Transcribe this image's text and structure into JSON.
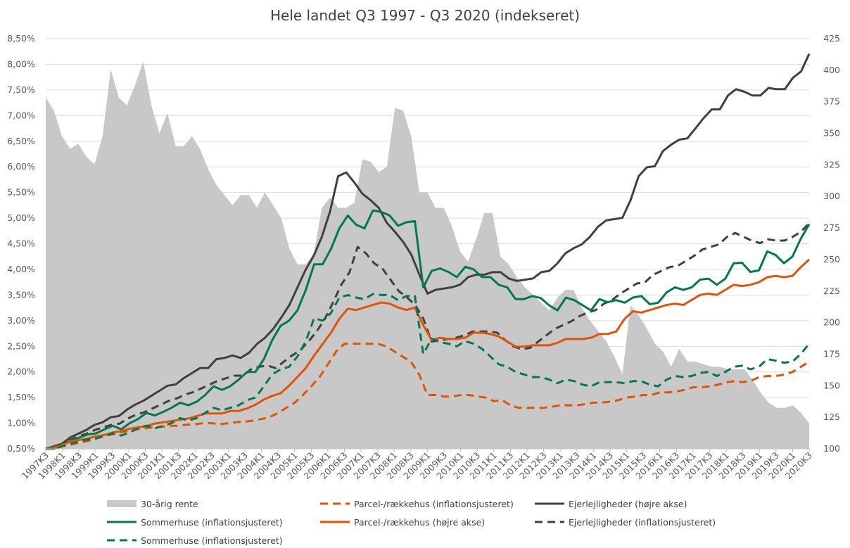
{
  "chart_data": {
    "type": "line",
    "title": "Hele landet Q3 1997 - Q3 2020 (indekseret)",
    "x_tick_labels": [
      "1997K3",
      "1998K1",
      "1998K3",
      "1999K1",
      "1999K3",
      "2000K1",
      "2000K3",
      "2001K1",
      "2001K3",
      "2002K1",
      "2002K3",
      "2003K1",
      "2003K3",
      "2004K1",
      "2004K3",
      "2005K1",
      "2005K3",
      "2006K1",
      "2006K3",
      "2007K1",
      "2007K3",
      "2008K1",
      "2008K3",
      "2009K1",
      "2009K3",
      "2010K1",
      "2010K3",
      "2011K1",
      "2011K3",
      "2012K1",
      "2012K3",
      "2013K1",
      "2013K3",
      "2014K1",
      "2014K3",
      "2015K1",
      "2015K3",
      "2016K1",
      "2016K3",
      "2017K1",
      "2017K3",
      "2018K1",
      "2018K3",
      "2019K1",
      "2019K3",
      "2020K1",
      "2020K3"
    ],
    "y_left": {
      "min": 0.5,
      "max": 8.5,
      "step": 0.5,
      "labels": [
        "0,50%",
        "1,00%",
        "1,50%",
        "2,00%",
        "2,50%",
        "3,00%",
        "3,50%",
        "4,00%",
        "4,50%",
        "5,00%",
        "5,50%",
        "6,00%",
        "6,50%",
        "7,00%",
        "7,50%",
        "8,00%",
        "8,50%"
      ]
    },
    "y_right": {
      "min": 100,
      "max": 425,
      "step": 25,
      "labels": [
        "100",
        "125",
        "150",
        "175",
        "200",
        "225",
        "250",
        "275",
        "300",
        "325",
        "350",
        "375",
        "400",
        "425"
      ]
    },
    "gridlines": true,
    "legend_position": "bottom",
    "legend": [
      {
        "label": "30-årig rente",
        "style": "area"
      },
      {
        "label": "Parcel-/rækkehus (inflationsjusteret)",
        "style": "dashed"
      },
      {
        "label": "Ejerlejligheder (højre akse)",
        "style": "solid"
      },
      {
        "label": "Sommerhuse (inflationsjusteret)",
        "style": "solid"
      },
      {
        "label": "Parcel-/rækkehus (højre akse)",
        "style": "solid"
      },
      {
        "label": "Ejerlejligheder (inflationsjusteret)",
        "style": "dashed"
      },
      {
        "label": "Sommerhuse (inflationsjusteret)",
        "style": "dashed"
      }
    ],
    "rate": {
      "name": "30-årig rente",
      "axis": "left",
      "color": "#c8c8c8",
      "values": [
        7.35,
        7.1,
        6.6,
        6.35,
        6.45,
        6.2,
        6.05,
        6.6,
        7.9,
        7.35,
        7.2,
        7.6,
        8.05,
        7.2,
        6.65,
        7.05,
        6.4,
        6.4,
        6.6,
        6.35,
        5.95,
        5.65,
        5.45,
        5.25,
        5.45,
        5.45,
        5.2,
        5.5,
        5.25,
        5.0,
        4.4,
        4.1,
        4.1,
        4.3,
        5.2,
        5.4,
        5.2,
        5.2,
        5.3,
        6.15,
        6.1,
        5.9,
        6.0,
        7.15,
        7.1,
        6.6,
        5.5,
        5.5,
        5.2,
        5.2,
        4.85,
        4.35,
        4.15,
        4.6,
        5.1,
        5.1,
        4.25,
        4.1,
        3.85,
        3.65,
        3.5,
        3.35,
        3.2,
        3.45,
        3.6,
        3.6,
        3.25,
        3.0,
        2.8,
        2.6,
        2.3,
        1.95,
        3.3,
        3.1,
        2.85,
        2.55,
        2.4,
        2.1,
        2.45,
        2.2,
        2.2,
        2.15,
        2.1,
        2.1,
        2.05,
        2.05,
        2.05,
        1.85,
        1.6,
        1.4,
        1.3,
        1.3,
        1.35,
        1.2,
        1.0
      ]
    },
    "series": [
      {
        "name": "Ejerlejligheder (højre akse)",
        "axis": "right",
        "color": "#404040",
        "dash": "solid",
        "values": [
          100,
          102,
          104,
          109,
          112,
          115,
          119,
          121,
          125,
          126,
          131,
          135,
          138,
          142,
          146,
          150,
          151,
          156,
          160,
          164,
          164,
          171,
          172,
          174,
          172,
          176,
          183,
          188,
          195,
          204,
          214,
          228,
          242,
          253,
          268,
          288,
          316,
          319,
          311,
          302,
          297,
          291,
          279,
          272,
          264,
          254,
          238,
          223,
          226,
          227,
          228,
          230,
          236,
          238,
          238,
          240,
          240,
          235,
          233,
          234,
          235,
          240,
          241,
          247,
          255,
          259,
          262,
          268,
          276,
          281,
          282,
          283,
          297,
          316,
          323,
          324,
          336,
          341,
          345,
          346,
          354,
          362,
          369,
          369,
          380,
          385,
          383,
          380,
          380,
          386,
          385,
          385,
          394,
          399,
          413
        ]
      },
      {
        "name": "Ejerlejligheder (inflationsjusteret)",
        "axis": "right",
        "color": "#404040",
        "dash": "dashed",
        "values": [
          100,
          101,
          103,
          107,
          110,
          112,
          115,
          117,
          119,
          120,
          124,
          127,
          129,
          132,
          135,
          138,
          140,
          143,
          145,
          148,
          151,
          154,
          156,
          158,
          158,
          163,
          165,
          166,
          164,
          169,
          174,
          178,
          185,
          193,
          203,
          216,
          230,
          240,
          260,
          255,
          247,
          243,
          234,
          225,
          220,
          214,
          203,
          185,
          186,
          187,
          188,
          190,
          193,
          193,
          193,
          192,
          186,
          181,
          179,
          180,
          185,
          190,
          195,
          198,
          201,
          205,
          208,
          210,
          215,
          218,
          223,
          227,
          231,
          232,
          238,
          241,
          244,
          245,
          249,
          253,
          258,
          260,
          262,
          268,
          271,
          268,
          265,
          263,
          266,
          265,
          265,
          268,
          272,
          279
        ]
      },
      {
        "name": "Sommerhuse (inflationsjusteret)",
        "axis": "left",
        "color": "#007a4d",
        "dash": "solid",
        "values": [
          0.5,
          0.5,
          0.58,
          0.66,
          0.72,
          0.78,
          0.8,
          0.88,
          0.95,
          0.88,
          1.0,
          1.08,
          1.2,
          1.15,
          1.22,
          1.3,
          1.4,
          1.35,
          1.42,
          1.55,
          1.72,
          1.65,
          1.72,
          1.85,
          2.0,
          2.0,
          2.25,
          2.62,
          2.9,
          3.0,
          3.2,
          3.6,
          4.1,
          4.1,
          4.4,
          4.8,
          5.05,
          4.87,
          4.8,
          5.15,
          5.12,
          5.05,
          4.85,
          4.92,
          4.94,
          3.65,
          3.97,
          4.02,
          3.95,
          3.85,
          4.05,
          4.0,
          3.85,
          3.85,
          3.7,
          3.65,
          3.42,
          3.42,
          3.48,
          3.44,
          3.3,
          3.2,
          3.45,
          3.4,
          3.3,
          3.2,
          3.42,
          3.36,
          3.4,
          3.35,
          3.45,
          3.48,
          3.32,
          3.35,
          3.55,
          3.65,
          3.6,
          3.65,
          3.8,
          3.82,
          3.7,
          3.82,
          4.12,
          4.13,
          3.95,
          3.98,
          4.35,
          4.28,
          4.12,
          4.25,
          4.6,
          4.88
        ]
      },
      {
        "name": "Parcel-/rækkehus (højre akse)",
        "axis": "right",
        "color": "#e35205",
        "dash": "solid",
        "values": [
          100,
          101,
          103,
          106,
          107,
          108,
          110,
          111,
          113,
          114,
          116,
          117,
          118,
          120,
          121,
          122,
          123,
          124,
          126,
          128,
          128,
          128,
          130,
          130,
          132,
          135,
          139,
          142,
          144,
          150,
          157,
          164,
          174,
          183,
          192,
          203,
          211,
          210,
          212,
          214,
          216,
          215,
          212,
          210,
          212,
          198,
          186,
          188,
          187,
          187,
          188,
          192,
          192,
          191,
          189,
          185,
          181,
          181,
          182,
          182,
          182,
          184,
          187,
          187,
          187,
          188,
          191,
          191,
          193,
          203,
          209,
          208,
          210,
          212,
          214,
          215,
          214,
          218,
          222,
          223,
          222,
          226,
          230,
          229,
          230,
          232,
          236,
          237,
          236,
          237,
          244,
          250
        ]
      },
      {
        "name": "Parcel-/rækkehus (inflationsjusteret)",
        "axis": "left",
        "color": "#e35205",
        "dash": "dashed",
        "values": [
          0.5,
          0.52,
          0.55,
          0.58,
          0.62,
          0.65,
          0.7,
          0.75,
          0.78,
          0.82,
          0.85,
          0.88,
          0.9,
          0.92,
          0.93,
          0.95,
          0.95,
          0.97,
          0.98,
          1.0,
          1.0,
          0.98,
          1.0,
          1.02,
          1.03,
          1.05,
          1.08,
          1.12,
          1.2,
          1.3,
          1.4,
          1.55,
          1.72,
          1.9,
          2.15,
          2.4,
          2.55,
          2.55,
          2.55,
          2.55,
          2.55,
          2.5,
          2.4,
          2.3,
          2.2,
          1.95,
          1.55,
          1.55,
          1.52,
          1.52,
          1.55,
          1.55,
          1.52,
          1.5,
          1.43,
          1.45,
          1.35,
          1.3,
          1.3,
          1.3,
          1.3,
          1.32,
          1.35,
          1.35,
          1.35,
          1.37,
          1.4,
          1.4,
          1.42,
          1.45,
          1.5,
          1.52,
          1.55,
          1.55,
          1.6,
          1.6,
          1.62,
          1.65,
          1.7,
          1.7,
          1.72,
          1.75,
          1.8,
          1.82,
          1.8,
          1.83,
          1.9,
          1.92,
          1.92,
          1.95,
          2.0,
          2.1,
          2.2
        ]
      },
      {
        "name": "Sommerhuse (inflationsjusteret)",
        "axis": "left",
        "color": "#007a4d",
        "dash": "dashed",
        "values": [
          0.5,
          0.5,
          0.55,
          0.6,
          0.65,
          0.68,
          0.7,
          0.75,
          0.8,
          0.76,
          0.82,
          0.9,
          0.95,
          0.9,
          0.95,
          1.0,
          1.1,
          1.05,
          1.1,
          1.2,
          1.3,
          1.25,
          1.3,
          1.35,
          1.45,
          1.5,
          1.72,
          1.95,
          2.05,
          2.1,
          2.3,
          2.6,
          3.05,
          3.0,
          3.15,
          3.45,
          3.5,
          3.45,
          3.42,
          3.52,
          3.5,
          3.5,
          3.4,
          3.48,
          3.48,
          2.35,
          2.65,
          2.58,
          2.55,
          2.5,
          2.6,
          2.55,
          2.45,
          2.3,
          2.15,
          2.1,
          2.0,
          1.95,
          1.9,
          1.9,
          1.85,
          1.78,
          1.85,
          1.82,
          1.75,
          1.72,
          1.8,
          1.8,
          1.8,
          1.78,
          1.82,
          1.82,
          1.75,
          1.72,
          1.85,
          1.92,
          1.9,
          1.92,
          1.98,
          2.0,
          1.92,
          2.0,
          2.1,
          2.12,
          2.05,
          2.1,
          2.25,
          2.22,
          2.18,
          2.2,
          2.35,
          2.55
        ]
      }
    ]
  }
}
